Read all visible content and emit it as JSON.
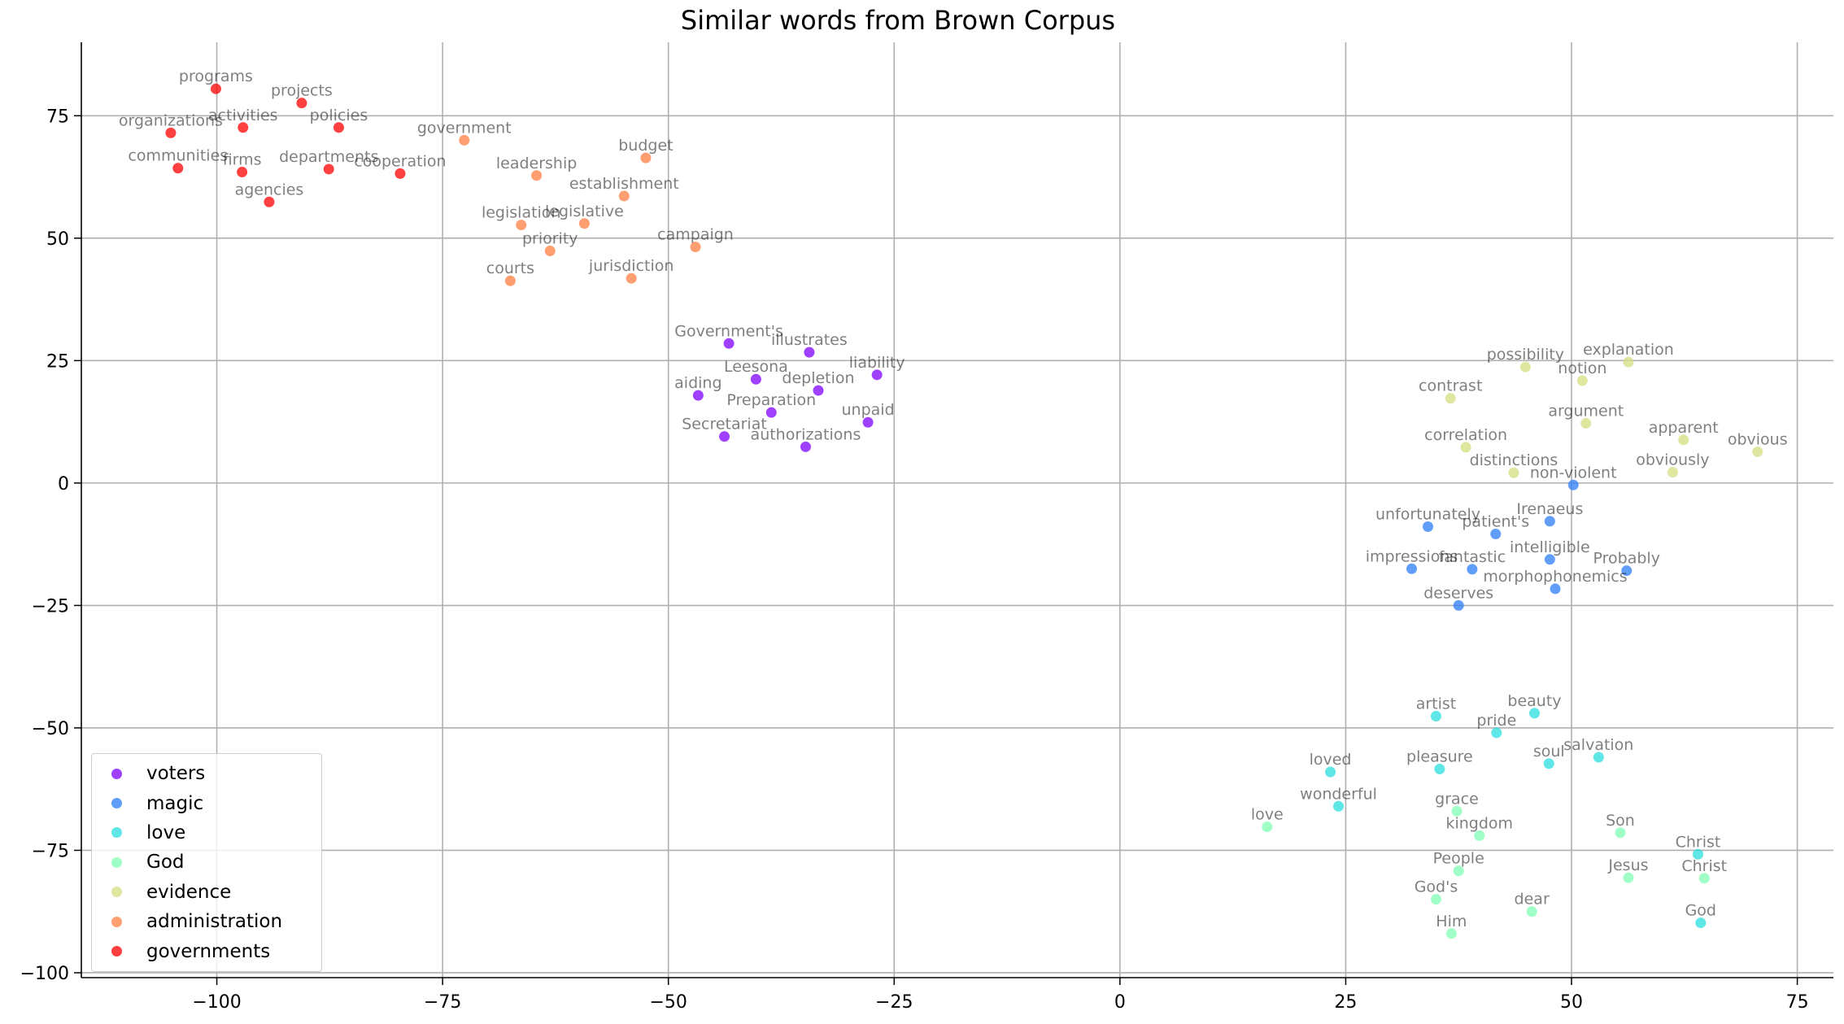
{
  "chart_data": {
    "type": "scatter",
    "title": "Similar words from Brown Corpus",
    "xlabel": "",
    "ylabel": "",
    "xlim": [
      -115,
      79
    ],
    "ylim": [
      -101,
      90
    ],
    "xticks": [
      -100,
      -75,
      -50,
      -25,
      0,
      25,
      50,
      75
    ],
    "yticks": [
      75,
      50,
      25,
      0,
      -25,
      -50,
      -75,
      -100
    ],
    "grid": true,
    "legend_position": "lower-left",
    "series": [
      {
        "name": "voters",
        "color": "#8000ff",
        "points": [
          {
            "label": "Government's",
            "x": -43.3,
            "y": 28.5
          },
          {
            "label": "illustrates",
            "x": -34.4,
            "y": 26.7
          },
          {
            "label": "Leesona",
            "x": -40.3,
            "y": 21.2
          },
          {
            "label": "depletion",
            "x": -33.4,
            "y": 18.9
          },
          {
            "label": "liability",
            "x": -26.9,
            "y": 22.1
          },
          {
            "label": "aiding",
            "x": -46.7,
            "y": 17.9
          },
          {
            "label": "Preparation",
            "x": -38.6,
            "y": 14.4
          },
          {
            "label": "unpaid",
            "x": -27.9,
            "y": 12.4
          },
          {
            "label": "Secretariat",
            "x": -43.8,
            "y": 9.5
          },
          {
            "label": "authorizations",
            "x": -34.8,
            "y": 7.4
          }
        ]
      },
      {
        "name": "magic",
        "color": "#2c7ef7",
        "points": [
          {
            "label": "non-violent",
            "x": 50.2,
            "y": -0.4
          },
          {
            "label": "Irenaeus",
            "x": 47.6,
            "y": -7.8
          },
          {
            "label": "unfortunately",
            "x": 34.1,
            "y": -8.9
          },
          {
            "label": "patient's",
            "x": 41.6,
            "y": -10.4
          },
          {
            "label": "intelligible",
            "x": 47.6,
            "y": -15.6
          },
          {
            "label": "Probably",
            "x": 56.1,
            "y": -17.9
          },
          {
            "label": "impressions",
            "x": 32.3,
            "y": -17.5
          },
          {
            "label": "fantastic",
            "x": 39.0,
            "y": -17.6
          },
          {
            "label": "morphophonemics",
            "x": 48.2,
            "y": -21.6
          },
          {
            "label": "deserves",
            "x": 37.5,
            "y": -25.0
          }
        ]
      },
      {
        "name": "love",
        "color": "#2adddd",
        "points": [
          {
            "label": "artist",
            "x": 35.0,
            "y": -47.6
          },
          {
            "label": "beauty",
            "x": 45.9,
            "y": -47.0
          },
          {
            "label": "pride",
            "x": 41.7,
            "y": -51.0
          },
          {
            "label": "salvation",
            "x": 53.0,
            "y": -56.0
          },
          {
            "label": "soul",
            "x": 47.5,
            "y": -57.3
          },
          {
            "label": "loved",
            "x": 23.3,
            "y": -59.0
          },
          {
            "label": "pleasure",
            "x": 35.4,
            "y": -58.4
          },
          {
            "label": "wonderful",
            "x": 24.2,
            "y": -66.0
          },
          {
            "label": "Christ",
            "x": 64.0,
            "y": -75.8
          },
          {
            "label": "God",
            "x": 64.3,
            "y": -89.8
          }
        ]
      },
      {
        "name": "God",
        "color": "#80ffb4",
        "points": [
          {
            "label": "grace",
            "x": 37.3,
            "y": -67.0
          },
          {
            "label": "love",
            "x": 16.3,
            "y": -70.2
          },
          {
            "label": "kingdom",
            "x": 39.8,
            "y": -72.0
          },
          {
            "label": "Son",
            "x": 55.4,
            "y": -71.4
          },
          {
            "label": "People",
            "x": 37.5,
            "y": -79.2
          },
          {
            "label": "Jesus",
            "x": 56.3,
            "y": -80.6
          },
          {
            "label": "Christ",
            "x": 64.7,
            "y": -80.7
          },
          {
            "label": "God's",
            "x": 35.0,
            "y": -85.0
          },
          {
            "label": "dear",
            "x": 45.6,
            "y": -87.5
          },
          {
            "label": "Him",
            "x": 36.7,
            "y": -92.0
          }
        ]
      },
      {
        "name": "evidence",
        "color": "#d4dd80",
        "points": [
          {
            "label": "possibility",
            "x": 44.9,
            "y": 23.7
          },
          {
            "label": "explanation",
            "x": 56.3,
            "y": 24.7
          },
          {
            "label": "notion",
            "x": 51.2,
            "y": 20.9
          },
          {
            "label": "contrast",
            "x": 36.6,
            "y": 17.3
          },
          {
            "label": "argument",
            "x": 51.6,
            "y": 12.2
          },
          {
            "label": "apparent",
            "x": 62.4,
            "y": 8.8
          },
          {
            "label": "obvious",
            "x": 70.6,
            "y": 6.4
          },
          {
            "label": "correlation",
            "x": 38.3,
            "y": 7.3
          },
          {
            "label": "distinctions",
            "x": 43.6,
            "y": 2.1
          },
          {
            "label": "obviously",
            "x": 61.2,
            "y": 2.2
          }
        ]
      },
      {
        "name": "administration",
        "color": "#ff7e41",
        "points": [
          {
            "label": "government",
            "x": -72.6,
            "y": 70.0
          },
          {
            "label": "budget",
            "x": -52.5,
            "y": 66.4
          },
          {
            "label": "leadership",
            "x": -64.6,
            "y": 62.8
          },
          {
            "label": "establishment",
            "x": -54.9,
            "y": 58.6
          },
          {
            "label": "legislation",
            "x": -66.3,
            "y": 52.7
          },
          {
            "label": "legislative",
            "x": -59.3,
            "y": 53.0
          },
          {
            "label": "campaign",
            "x": -47.0,
            "y": 48.2
          },
          {
            "label": "priority",
            "x": -63.1,
            "y": 47.4
          },
          {
            "label": "courts",
            "x": -67.5,
            "y": 41.3
          },
          {
            "label": "jurisdiction",
            "x": -54.1,
            "y": 41.8
          }
        ]
      },
      {
        "name": "governments",
        "color": "#ff0000",
        "points": [
          {
            "label": "programs",
            "x": -100.1,
            "y": 80.5
          },
          {
            "label": "projects",
            "x": -90.6,
            "y": 77.6
          },
          {
            "label": "organizations",
            "x": -105.1,
            "y": 71.5
          },
          {
            "label": "activities",
            "x": -97.1,
            "y": 72.6
          },
          {
            "label": "policies",
            "x": -86.5,
            "y": 72.6
          },
          {
            "label": "communities",
            "x": -104.3,
            "y": 64.3
          },
          {
            "label": "firms",
            "x": -97.2,
            "y": 63.5
          },
          {
            "label": "departments",
            "x": -87.6,
            "y": 64.1
          },
          {
            "label": "cooperation",
            "x": -79.7,
            "y": 63.2
          },
          {
            "label": "agencies",
            "x": -94.2,
            "y": 57.4
          }
        ]
      }
    ]
  }
}
